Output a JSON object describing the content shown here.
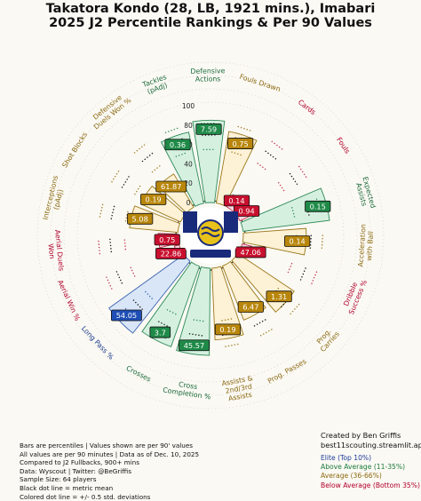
{
  "title_line1": "Takatora Kondo (28, LB, 1921 mins.), Imabari",
  "title_line2": "2025 J2 Percentile Rankings & Per 90 Values",
  "colors": {
    "elite": "#1a6b3a",
    "above_average": "#1a7a3a",
    "average": "#8a6a10",
    "below_average": "#b0002a",
    "elite_fill": "#d6f0e0",
    "average_fill": "#fdf1d6",
    "below_fill": "#fbd9e0",
    "blue_fill": "#d9e6f7",
    "blue_text": "#1a3a8a"
  },
  "chart_data": {
    "type": "radial-bar",
    "rlim": [
      0,
      100
    ],
    "radial_ticks": [
      "100",
      "80",
      "60",
      "40",
      "20",
      "0"
    ],
    "metrics": [
      {
        "label": "Fouls Drawn",
        "percentile": 75,
        "value": "0.75",
        "tier": "average",
        "label_color": "#8a6a10"
      },
      {
        "label": "Cards",
        "percentile": 14,
        "value": "0.14",
        "tier": "below",
        "label_color": "#b0002a"
      },
      {
        "label": "Fouls",
        "percentile": 10,
        "value": "0.94",
        "tier": "below",
        "label_color": "#b0002a"
      },
      {
        "label": "Expected Assists",
        "percentile": 90,
        "value": "0.15",
        "tier": "elite",
        "label_color": "#1a6b3a"
      },
      {
        "label": "Acceleration with Ball",
        "percentile": 65,
        "value": "0.14",
        "tier": "average",
        "label_color": "#8a6a10"
      },
      {
        "label": "Dribble Success %",
        "percentile": 10,
        "value": "47.06",
        "tier": "below",
        "label_color": "#b0002a"
      },
      {
        "label": "Prog. Carries",
        "percentile": 70,
        "value": "1.31",
        "tier": "average",
        "label_color": "#8a6a10"
      },
      {
        "label": "Prog. Passes",
        "percentile": 60,
        "value": "6.47",
        "tier": "average",
        "label_color": "#8a6a10"
      },
      {
        "label": "Assists & 2nd/3rd Assists",
        "percentile": 74,
        "value": "0.19",
        "tier": "average",
        "label_color": "#8a6a10"
      },
      {
        "label": "Cross Completion %",
        "percentile": 90,
        "value": "45.57",
        "tier": "elite",
        "label_color": "#1a6b3a"
      },
      {
        "label": "Crosses",
        "percentile": 88,
        "value": "3.7",
        "tier": "elite",
        "label_color": "#1a6b3a"
      },
      {
        "label": "Long Pass %",
        "percentile": 95,
        "value": "54.05",
        "tier": "blue",
        "label_color": "#1a3a8a"
      },
      {
        "label": "Aerial Win %",
        "percentile": 5,
        "value": "22.86",
        "tier": "below",
        "label_color": "#b0002a"
      },
      {
        "label": "Aerial Duels Won",
        "percentile": 20,
        "value": "0.75",
        "tier": "below",
        "label_color": "#b0002a"
      },
      {
        "label": "Interceptions (pAdj)",
        "percentile": 50,
        "value": "5.08",
        "tier": "average",
        "label_color": "#8a6a10"
      },
      {
        "label": "Shot Blocks",
        "percentile": 45,
        "value": "0.19",
        "tier": "average",
        "label_color": "#8a6a10"
      },
      {
        "label": "Defensive Duels Won %",
        "percentile": 40,
        "value": "61.87",
        "tier": "average",
        "label_color": "#8a6a10"
      },
      {
        "label": "Tackles (pAdj)",
        "percentile": 75,
        "value": "0.36",
        "tier": "elite",
        "label_color": "#1a6b3a"
      },
      {
        "label": "Defensive Actions",
        "percentile": 85,
        "value": "7.59",
        "tier": "elite",
        "label_color": "#1a6b3a"
      }
    ]
  },
  "footer_left": [
    "Bars are percentiles | Values shown are per 90' values",
    "All values are per 90 minutes | Data as of Dec. 10, 2025",
    "Compared to J2 Fullbacks, 900+ mins",
    "Data: Wyscout | Twitter: @BeGriffis",
    "Sample Size: 64 players",
    "Black dot line = metric mean",
    "Colored dot line = +/- 0.5 std. deviations"
  ],
  "footer_right": {
    "created_by": "Created by Ben Griffis",
    "site": "best11scouting.streamlit.app",
    "legend": [
      {
        "label": "Elite (Top 10%)",
        "color": "#1a3a9a"
      },
      {
        "label": "Above Average (11-35%)",
        "color": "#1a7a3a"
      },
      {
        "label": "Average (36-66%)",
        "color": "#8a6a10"
      },
      {
        "label": "Below Average (Bottom 35%)",
        "color": "#b0002a"
      }
    ]
  }
}
